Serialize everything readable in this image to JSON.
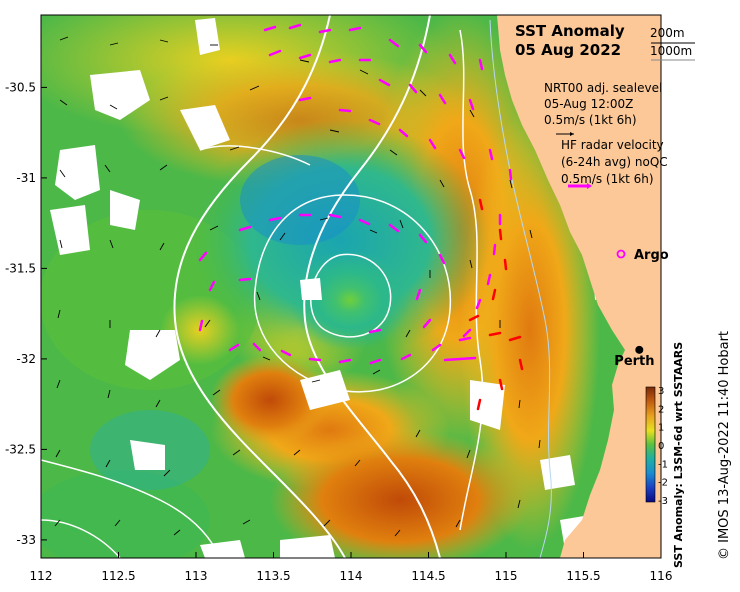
{
  "title": "SST Anomaly",
  "date": "05 Aug 2022",
  "contours": {
    "label_200": "200m",
    "label_1000": "1000m"
  },
  "sealevel": {
    "line1": "NRT00 adj. sealevel",
    "line2": "05-Aug 12:00Z",
    "line3": "0.5m/s (1kt 6h)"
  },
  "hf_radar": {
    "line1": "HF radar velocity",
    "line2": "(6-24h avg) noQC",
    "line3": "0.5m/s (1kt 6h)"
  },
  "argo_label": "Argo",
  "city_label": "Perth",
  "colorbar": {
    "title": "SST Anomaly: L3SM-6d wrt SSTAARS",
    "ticks": [
      "3",
      "2",
      "1",
      "0",
      "-1",
      "-2",
      "-3"
    ]
  },
  "credit": "© IMOS 13-Aug-2022 11:40 Hobart",
  "x_axis": {
    "ticks": [
      "112",
      "112.5",
      "113",
      "113.5",
      "114",
      "114.5",
      "115",
      "115.5",
      "116"
    ],
    "range": [
      112,
      116
    ]
  },
  "y_axis": {
    "ticks": [
      "-30.5",
      "-31",
      "-31.5",
      "-32",
      "-32.5",
      "-33"
    ],
    "range": [
      -33.1,
      -30.1
    ]
  },
  "perth_location": {
    "lon": 115.86,
    "lat": -31.95
  },
  "colors": {
    "land": "#fcc898",
    "magenta": "#ff00ff",
    "red": "#ff0000",
    "contour": "#ffffff"
  }
}
